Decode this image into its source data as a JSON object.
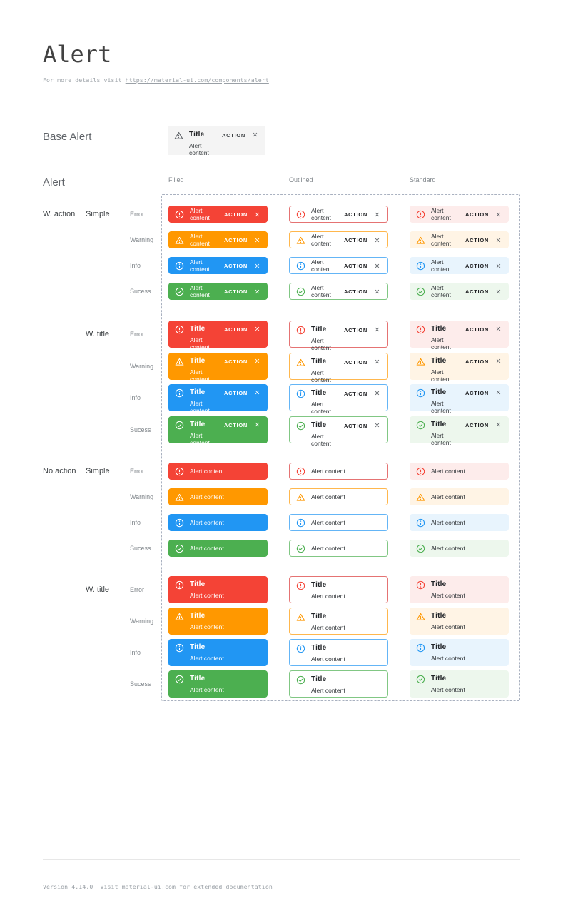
{
  "page": {
    "title": "Alert",
    "subtitle_prefix": "For more details visit ",
    "subtitle_link": "https://material-ui.com/components/alert",
    "footer": "Version 4.14.0  Visit material-ui.com for extended documentation"
  },
  "base_alert": {
    "section_label": "Base Alert",
    "icon": "warning-icon",
    "title": "Title",
    "content": "Alert content",
    "action_label": "ACTION",
    "close_icon": "close-icon"
  },
  "alert_grid": {
    "section_label": "Alert",
    "columns": [
      {
        "label": "Filled",
        "variant": "filled"
      },
      {
        "label": "Outlined",
        "variant": "outlined"
      },
      {
        "label": "Standard",
        "variant": "standard"
      }
    ],
    "severity_rows": [
      {
        "label": "Error",
        "severity": "error",
        "icon": "error-icon"
      },
      {
        "label": "Warning",
        "severity": "warning",
        "icon": "warning-icon"
      },
      {
        "label": "Info",
        "severity": "info",
        "icon": "info-icon"
      },
      {
        "label": "Sucess",
        "severity": "success",
        "icon": "success-icon"
      }
    ],
    "sections": [
      {
        "group_label": "W. action",
        "subgroup_label": "Simple",
        "titled": false,
        "action": true
      },
      {
        "group_label": "",
        "subgroup_label": "W. title",
        "titled": true,
        "action": true
      },
      {
        "group_label": "No action",
        "subgroup_label": "Simple",
        "titled": false,
        "action": false
      },
      {
        "group_label": "",
        "subgroup_label": "W. title",
        "titled": true,
        "action": false
      }
    ],
    "alert_title": "Title",
    "alert_content": "Alert content",
    "action_label": "ACTION"
  },
  "colors": {
    "error": {
      "main": "#f44336",
      "border": "#e57373",
      "tint": "#fdeceb"
    },
    "warning": {
      "main": "#ff9800",
      "border": "#ffb74d",
      "tint": "#fff4e5"
    },
    "info": {
      "main": "#2196f3",
      "border": "#64b5f6",
      "tint": "#e8f4fd"
    },
    "success": {
      "main": "#4caf50",
      "border": "#81c784",
      "tint": "#edf7ed"
    }
  }
}
